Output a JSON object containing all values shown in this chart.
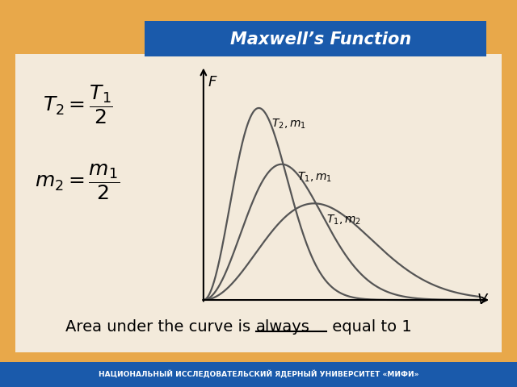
{
  "title": "Maxwell’s Function",
  "title_color": "#FFFFFF",
  "title_bg_color": "#1a5aab",
  "slide_bg_color": "#e8a84a",
  "content_bg_color": "#f5f0e8",
  "bottom_bar_color": "#1a5aab",
  "bottom_text": "НАЦИОНАЛЬНЫЙ ИССЛЕДОВАТЕЛЬСКИЙ ЯДЕРНЫЙ УНИВЕРСИТЕТ «МИФИ»",
  "formula1": "$T_2 = \\dfrac{T_1}{2}$",
  "formula2": "$m_2 = \\dfrac{m_1}{2}$",
  "caption_pre": "Area under the curve is ",
  "caption_underline": "always",
  "caption_post": " equal to 1",
  "curve_color": "#555555",
  "axis_color": "#000000",
  "label_F": "F",
  "label_V": "V",
  "label_T2m1": "$T_2, m_1$",
  "label_T1m1": "$T_1, m_1$",
  "label_T1m2": "$T_1, m_2$",
  "sigma1": 1.0,
  "sigma2_factor": 0.7071,
  "sigma3_factor": 1.4142
}
